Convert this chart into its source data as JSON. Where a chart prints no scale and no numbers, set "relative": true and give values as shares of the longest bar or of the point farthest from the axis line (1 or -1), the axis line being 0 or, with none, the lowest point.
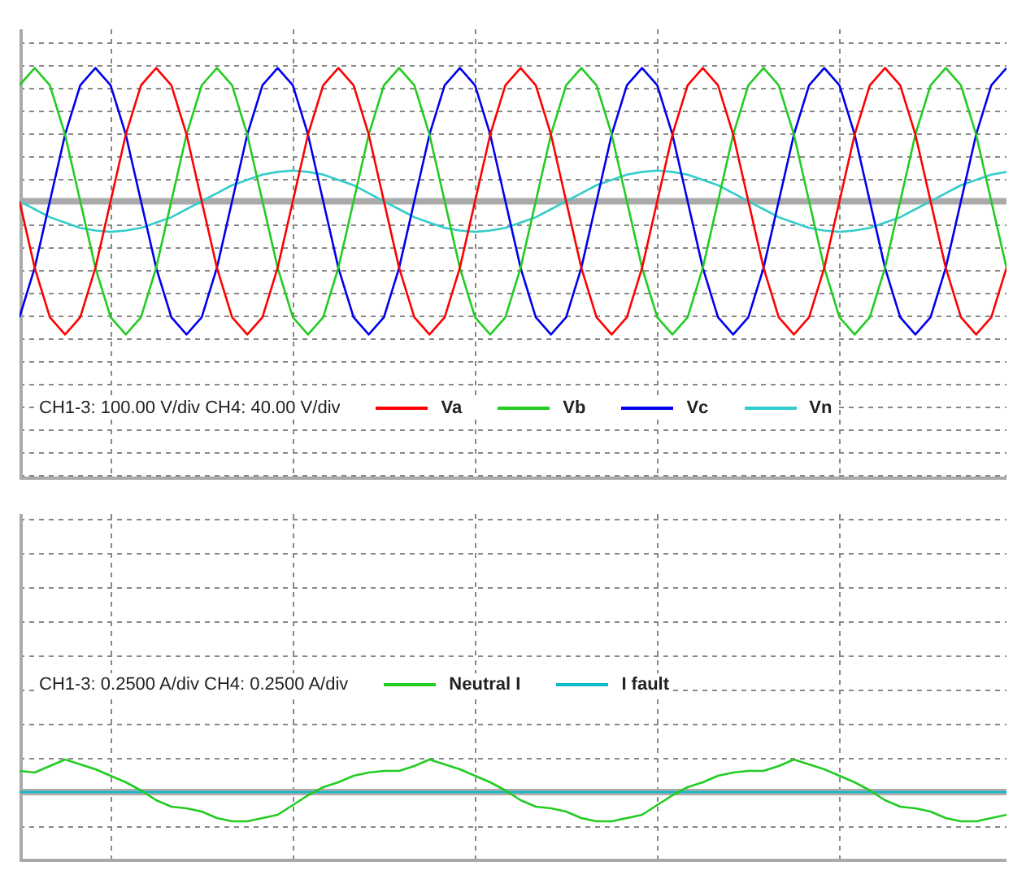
{
  "chart_data": [
    {
      "type": "line",
      "relative": true,
      "tick_labels": false,
      "grid": true,
      "legend": "bottom",
      "annotations": [
        "CH1-3: 100.00 V/div CH4: 40.00 V/div"
      ],
      "categories": [
        null,
        null,
        null,
        null,
        null,
        null,
        null,
        null,
        null,
        null,
        null,
        null,
        null,
        null,
        null,
        null,
        null,
        null,
        null,
        null,
        null,
        null,
        null,
        null,
        null,
        null,
        null,
        null,
        null,
        null,
        null,
        null,
        null,
        null,
        null,
        null,
        null,
        null,
        null,
        null,
        null,
        null,
        null,
        null,
        null,
        null,
        null,
        null,
        null,
        null,
        null,
        null,
        null,
        null,
        null,
        null,
        null,
        null,
        null,
        null,
        null,
        null,
        null,
        null,
        null,
        null
      ],
      "series": [
        {
          "name": "Va",
          "color": "#ff0000",
          "values": [
            0,
            -0.5,
            -0.87,
            -1,
            -0.87,
            -0.5,
            0,
            0.5,
            0.87,
            1,
            0.87,
            0.5,
            0,
            -0.5,
            -0.87,
            -1,
            -0.87,
            -0.5,
            0,
            0.5,
            0.87,
            1,
            0.87,
            0.5,
            0,
            -0.5,
            -0.87,
            -1,
            -0.87,
            -0.5,
            0,
            0.5,
            0.87,
            1,
            0.87,
            0.5,
            0,
            -0.5,
            -0.87,
            -1,
            -0.87,
            -0.5,
            0,
            0.5,
            0.87,
            1,
            0.87,
            0.5,
            0,
            -0.5,
            -0.87,
            -1,
            -0.87,
            -0.5,
            0,
            0.5,
            0.87,
            1,
            0.87,
            0.5,
            0,
            -0.5,
            -0.87,
            -1,
            -0.87,
            -0.5
          ]
        },
        {
          "name": "Vb",
          "color": "#22cc22",
          "values": [
            0.87,
            1,
            0.87,
            0.5,
            0,
            -0.5,
            -0.87,
            -1,
            -0.87,
            -0.5,
            0,
            0.5,
            0.87,
            1,
            0.87,
            0.5,
            0,
            -0.5,
            -0.87,
            -1,
            -0.87,
            -0.5,
            0,
            0.5,
            0.87,
            1,
            0.87,
            0.5,
            0,
            -0.5,
            -0.87,
            -1,
            -0.87,
            -0.5,
            0,
            0.5,
            0.87,
            1,
            0.87,
            0.5,
            0,
            -0.5,
            -0.87,
            -1,
            -0.87,
            -0.5,
            0,
            0.5,
            0.87,
            1,
            0.87,
            0.5,
            0,
            -0.5,
            -0.87,
            -1,
            -0.87,
            -0.5,
            0,
            0.5,
            0.87,
            1,
            0.87,
            0.5,
            0,
            -0.5
          ]
        },
        {
          "name": "Vc",
          "color": "#0000ee",
          "values": [
            -0.87,
            -0.5,
            0,
            0.5,
            0.87,
            1,
            0.87,
            0.5,
            0,
            -0.5,
            -0.87,
            -1,
            -0.87,
            -0.5,
            0,
            0.5,
            0.87,
            1,
            0.87,
            0.5,
            0,
            -0.5,
            -0.87,
            -1,
            -0.87,
            -0.5,
            0,
            0.5,
            0.87,
            1,
            0.87,
            0.5,
            0,
            -0.5,
            -0.87,
            -1,
            -0.87,
            -0.5,
            0,
            0.5,
            0.87,
            1,
            0.87,
            0.5,
            0,
            -0.5,
            -0.87,
            -1,
            -0.87,
            -0.5,
            0,
            0.5,
            0.87,
            1,
            0.87,
            0.5,
            0,
            -0.5,
            -0.87,
            -1,
            -0.87,
            -0.5,
            0,
            0.5,
            0.87,
            1
          ]
        },
        {
          "name": "Vn",
          "color": "#33cccc",
          "values": [
            0,
            -0.06,
            -0.12,
            -0.16,
            -0.2,
            -0.22,
            -0.23,
            -0.22,
            -0.2,
            -0.16,
            -0.12,
            -0.06,
            0,
            0.06,
            0.12,
            0.16,
            0.2,
            0.22,
            0.23,
            0.22,
            0.2,
            0.16,
            0.12,
            0.06,
            0,
            -0.06,
            -0.12,
            -0.16,
            -0.2,
            -0.22,
            -0.23,
            -0.22,
            -0.2,
            -0.16,
            -0.12,
            -0.06,
            0,
            0.06,
            0.12,
            0.16,
            0.2,
            0.22,
            0.23,
            0.22,
            0.2,
            0.16,
            0.12,
            0.06,
            0,
            -0.06,
            -0.12,
            -0.16,
            -0.2,
            -0.22,
            -0.23,
            -0.22,
            -0.2,
            -0.16,
            -0.12,
            -0.06,
            0,
            0.06,
            0.12,
            0.16,
            0.2,
            0.22
          ]
        }
      ]
    },
    {
      "type": "line",
      "relative": true,
      "tick_labels": false,
      "grid": true,
      "legend": "top right",
      "annotations": [
        "CH1-3: 0.2500 A/div CH4: 0.2500 A/div"
      ],
      "categories": [
        null,
        null,
        null,
        null,
        null,
        null,
        null,
        null,
        null,
        null,
        null,
        null,
        null,
        null,
        null,
        null,
        null,
        null,
        null,
        null,
        null,
        null,
        null,
        null,
        null,
        null,
        null,
        null,
        null,
        null,
        null,
        null,
        null,
        null,
        null,
        null,
        null,
        null,
        null,
        null,
        null,
        null,
        null,
        null,
        null,
        null,
        null,
        null,
        null,
        null,
        null,
        null,
        null,
        null,
        null,
        null,
        null,
        null,
        null,
        null,
        null,
        null,
        null,
        null,
        null,
        null
      ],
      "series": [
        {
          "name": "Neutral I",
          "color": "#22cc22",
          "values": [
            0.65,
            0.6,
            0.8,
            1,
            0.85,
            0.7,
            0.5,
            0.3,
            0.05,
            -0.25,
            -0.45,
            -0.5,
            -0.6,
            -0.8,
            -0.9,
            -0.9,
            -0.8,
            -0.7,
            -0.4,
            -0.1,
            0.15,
            0.3,
            0.5,
            0.6,
            0.65,
            0.65,
            0.8,
            1,
            0.85,
            0.7,
            0.5,
            0.3,
            0.05,
            -0.25,
            -0.45,
            -0.5,
            -0.6,
            -0.8,
            -0.9,
            -0.9,
            -0.8,
            -0.7,
            -0.4,
            -0.1,
            0.15,
            0.3,
            0.5,
            0.6,
            0.65,
            0.65,
            0.8,
            1,
            0.85,
            0.7,
            0.5,
            0.3,
            0.05,
            -0.25,
            -0.45,
            -0.5,
            -0.6,
            -0.8,
            -0.9,
            -0.9,
            -0.8,
            -0.7
          ]
        },
        {
          "name": "I fault",
          "color": "#11bbcc",
          "values": [
            0,
            0,
            0,
            0,
            0,
            0,
            0,
            0,
            0,
            0,
            0,
            0,
            0,
            0,
            0,
            0,
            0,
            0,
            0,
            0,
            0,
            0,
            0,
            0,
            0,
            0,
            0,
            0,
            0,
            0,
            0,
            0,
            0,
            0,
            0,
            0,
            0,
            0,
            0,
            0,
            0,
            0,
            0,
            0,
            0,
            0,
            0,
            0,
            0,
            0,
            0,
            0,
            0,
            0,
            0,
            0,
            0,
            0,
            0,
            0,
            0,
            0,
            0,
            0,
            0,
            0
          ]
        }
      ]
    }
  ]
}
